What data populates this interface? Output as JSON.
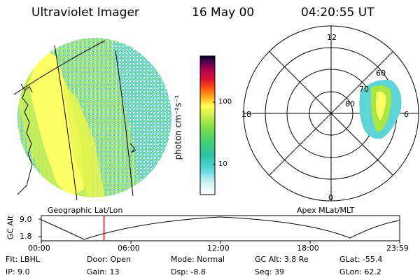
{
  "header": {
    "instrument": "Ultraviolet Imager",
    "date": "16 May 00",
    "time": "04:20:55 UT"
  },
  "colorbar": {
    "label": "photon cm⁻²s⁻¹",
    "ticks": [
      "100",
      "10"
    ]
  },
  "polar_plot": {
    "mlt_labels": {
      "top": "12",
      "left": "18",
      "right": "6",
      "bottom": "0"
    },
    "lat_labels": [
      "60",
      "70",
      "80"
    ]
  },
  "timeline": {
    "y_label": "GC Alt",
    "y_ticks": [
      "9.0",
      "1.8"
    ],
    "left_caption": "Geographic Lat/Lon",
    "right_caption": "Apex MLat/MLT",
    "x_ticks": [
      "00:00",
      "06:00",
      "12:00",
      "18:00",
      "23:59"
    ],
    "current_time_fraction": 0.175
  },
  "footer": {
    "row1": [
      {
        "key": "Flt:",
        "val": "LBHL"
      },
      {
        "key": "Door:",
        "val": "Open"
      },
      {
        "key": "Mode:",
        "val": "Normal"
      },
      {
        "key": "GC Alt:",
        "val": "3.8 Re"
      },
      {
        "key": "GLat:",
        "val": "-55.4"
      }
    ],
    "row2": [
      {
        "key": "IP:",
        "val": "9.0"
      },
      {
        "key": "Gain:",
        "val": "13"
      },
      {
        "key": "Dsp:",
        "val": "-8.8"
      },
      {
        "key": "Seq:",
        "val": "39"
      },
      {
        "key": "GLon:",
        "val": "62.2"
      }
    ]
  },
  "colors": {
    "aurora_high": "#ffff60",
    "aurora_mid": "#9be23c",
    "aurora_low": "#3cc6c8",
    "marker": "#ff0000"
  }
}
